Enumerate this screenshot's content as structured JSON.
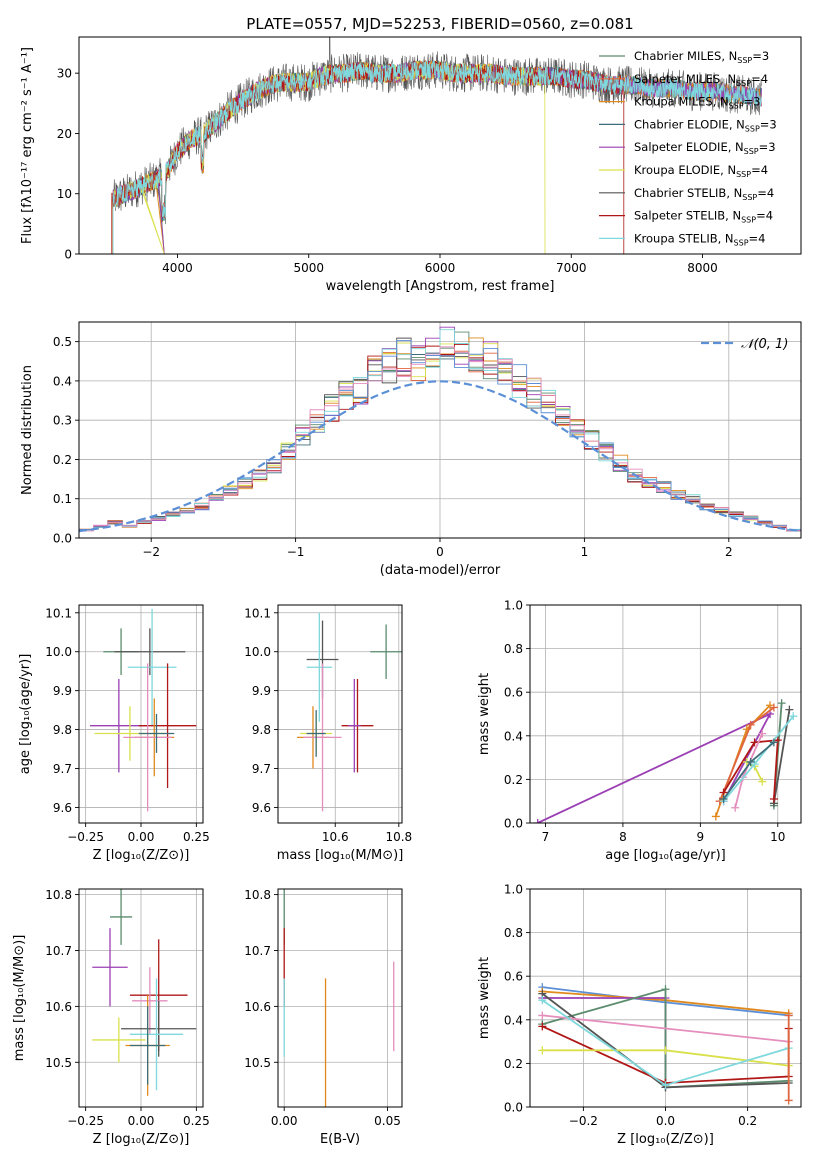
{
  "chart_data": [
    {
      "id": "spectrum",
      "type": "line",
      "title": "PLATE=0557, MJD=52253, FIBERID=0560, z=0.081",
      "xlabel": "wavelength [Angstrom, rest frame]",
      "ylabel": "Flux [fλ10⁻¹⁷ erg cm⁻² s⁻¹ A⁻¹]",
      "xlim": [
        3250,
        8750
      ],
      "ylim": [
        0,
        36
      ],
      "xticks": [
        4000,
        5000,
        6000,
        7000,
        8000
      ],
      "yticks": [
        0,
        10,
        20,
        30
      ],
      "grid": false,
      "legend_position": "upper-right",
      "series": [
        {
          "name": "Chabrier MILES, N_SSP=3",
          "color": "#5b8c6e"
        },
        {
          "name": "Salpeter MILES, N_SSP=4",
          "color": "#e0663f"
        },
        {
          "name": "Kroupa MILES, N_SSP=3",
          "color": "#e08a1e"
        },
        {
          "name": "Chabrier ELODIE, N_SSP=3",
          "color": "#3c6e7a"
        },
        {
          "name": "Salpeter ELODIE, N_SSP=3",
          "color": "#9b3fb5"
        },
        {
          "name": "Kroupa ELODIE, N_SSP=4",
          "color": "#d9e04a"
        },
        {
          "name": "Chabrier STELIB, N_SSP=4",
          "color": "#555555"
        },
        {
          "name": "Salpeter STELIB, N_SSP=4",
          "color": "#b01818"
        },
        {
          "name": "Kroupa STELIB, N_SSP=4",
          "color": "#7fd8dc"
        }
      ],
      "continuum": {
        "x": [
          3500,
          3650,
          3800,
          3900,
          4000,
          4100,
          4200,
          4300,
          4400,
          4500,
          4600,
          4700,
          4800,
          4900,
          5000,
          5100,
          5200,
          5300,
          5400,
          5500,
          5600,
          5700,
          5800,
          5900,
          6000,
          6100,
          6200,
          6300,
          6400,
          6500,
          6600,
          6700,
          6800,
          6900,
          7000,
          7100,
          7200,
          7300,
          7400,
          7500,
          7600,
          7700,
          7800,
          7900,
          8000,
          8100,
          8200,
          8300,
          8400
        ],
        "y": [
          9,
          10.5,
          12,
          13,
          17,
          19,
          20,
          22,
          24,
          25.5,
          27,
          28,
          28.5,
          28.5,
          28.5,
          29.5,
          30,
          30,
          30.5,
          30,
          30,
          30,
          30.5,
          30.5,
          30.5,
          30,
          30,
          30,
          30,
          29.5,
          29.5,
          29.5,
          29.5,
          29.5,
          29,
          29,
          28.5,
          28,
          28,
          28,
          27.5,
          27.5,
          27.5,
          27,
          27,
          27,
          26.5,
          26.5,
          26
        ]
      }
    },
    {
      "id": "residuals",
      "type": "line",
      "xlabel": "(data-model)/error",
      "ylabel": "Normed distribution",
      "xlim": [
        -2.5,
        2.5
      ],
      "ylim": [
        0,
        0.55
      ],
      "xticks": [
        -2,
        -1,
        0,
        1,
        2
      ],
      "yticks": [
        0.0,
        0.1,
        0.2,
        0.3,
        0.4,
        0.5
      ],
      "grid": true,
      "legend": "𝒩(0, 1)",
      "legend_position": "upper-right",
      "reference_curve": {
        "type": "normal",
        "mean": 0,
        "sigma": 1,
        "color": "#5b8fd6"
      },
      "hist_x": [
        -2.5,
        -2.4,
        -2.3,
        -2.2,
        -2.1,
        -2.0,
        -1.9,
        -1.8,
        -1.7,
        -1.6,
        -1.5,
        -1.4,
        -1.3,
        -1.2,
        -1.1,
        -1.0,
        -0.9,
        -0.8,
        -0.7,
        -0.6,
        -0.5,
        -0.4,
        -0.3,
        -0.2,
        -0.1,
        0.0,
        0.1,
        0.2,
        0.3,
        0.4,
        0.5,
        0.6,
        0.7,
        0.8,
        0.9,
        1.0,
        1.1,
        1.2,
        1.3,
        1.4,
        1.5,
        1.6,
        1.7,
        1.8,
        1.9,
        2.0,
        2.1,
        2.2,
        2.3,
        2.4
      ],
      "hist_y": [
        0.02,
        0.03,
        0.04,
        0.03,
        0.04,
        0.05,
        0.06,
        0.07,
        0.08,
        0.1,
        0.12,
        0.14,
        0.16,
        0.18,
        0.22,
        0.26,
        0.3,
        0.33,
        0.36,
        0.38,
        0.42,
        0.44,
        0.46,
        0.45,
        0.47,
        0.5,
        0.48,
        0.47,
        0.45,
        0.43,
        0.4,
        0.37,
        0.34,
        0.31,
        0.28,
        0.25,
        0.22,
        0.19,
        0.16,
        0.14,
        0.13,
        0.11,
        0.1,
        0.08,
        0.07,
        0.06,
        0.05,
        0.04,
        0.03,
        0.02
      ]
    },
    {
      "id": "z-age",
      "type": "scatter",
      "xlabel": "Z [log₁₀(Z/Z⊙)]",
      "ylabel": "age  [log₁₀(age/yr)]",
      "xlim": [
        -0.28,
        0.28
      ],
      "ylim": [
        9.56,
        10.12
      ],
      "xticks": [
        -0.25,
        0.0,
        0.25
      ],
      "xticklabels": [
        "−0.25",
        "0.00",
        "0.25"
      ],
      "yticks": [
        9.6,
        9.7,
        9.8,
        9.9,
        10.0,
        10.1
      ],
      "grid": true,
      "points": [
        {
          "x": -0.09,
          "y": 10.0,
          "xerr": 0.08,
          "yerr": 0.06,
          "color": "#5b8c6e"
        },
        {
          "x": 0.04,
          "y": 10.0,
          "xerr": 0.16,
          "yerr": 0.06,
          "color": "#555555"
        },
        {
          "x": 0.05,
          "y": 9.96,
          "xerr": 0.11,
          "yerr": 0.15,
          "color": "#7fd8dc"
        },
        {
          "x": -0.1,
          "y": 9.81,
          "xerr": 0.13,
          "yerr": 0.12,
          "color": "#9b3fb5"
        },
        {
          "x": 0.12,
          "y": 9.81,
          "xerr": 0.13,
          "yerr": 0.16,
          "color": "#b01818"
        },
        {
          "x": -0.05,
          "y": 9.79,
          "xerr": 0.16,
          "yerr": 0.07,
          "color": "#d9e04a"
        },
        {
          "x": 0.06,
          "y": 9.78,
          "xerr": 0.09,
          "yerr": 0.1,
          "color": "#e08a1e"
        },
        {
          "x": 0.03,
          "y": 9.78,
          "xerr": 0.11,
          "yerr": 0.19,
          "color": "#e58dbd"
        },
        {
          "x": 0.07,
          "y": 9.79,
          "xerr": 0.08,
          "yerr": 0.05,
          "color": "#3c6e7a"
        }
      ]
    },
    {
      "id": "mass-age",
      "type": "scatter",
      "xlabel": "mass [log₁₀(M/M⊙)]",
      "ylabel": "",
      "xlim": [
        10.42,
        10.81
      ],
      "ylim": [
        9.56,
        10.12
      ],
      "xticks": [
        10.6,
        10.8
      ],
      "yticks": [
        9.6,
        9.7,
        9.8,
        9.9,
        10.0,
        10.1
      ],
      "grid": true,
      "points": [
        {
          "x": 10.76,
          "y": 10.0,
          "xerr": 0.05,
          "yerr": 0.07,
          "color": "#5b8c6e"
        },
        {
          "x": 10.56,
          "y": 9.98,
          "xerr": 0.05,
          "yerr": 0.1,
          "color": "#555555"
        },
        {
          "x": 10.55,
          "y": 9.96,
          "xerr": 0.04,
          "yerr": 0.14,
          "color": "#7fd8dc"
        },
        {
          "x": 10.67,
          "y": 9.81,
          "xerr": 0.05,
          "yerr": 0.12,
          "color": "#b01818"
        },
        {
          "x": 10.54,
          "y": 9.79,
          "xerr": 0.05,
          "yerr": 0.05,
          "color": "#d9e04a"
        },
        {
          "x": 10.53,
          "y": 9.78,
          "xerr": 0.05,
          "yerr": 0.08,
          "color": "#e08a1e"
        },
        {
          "x": 10.56,
          "y": 9.78,
          "xerr": 0.06,
          "yerr": 0.19,
          "color": "#e58dbd"
        },
        {
          "x": 10.66,
          "y": 9.81,
          "xerr": 0.02,
          "yerr": 0.12,
          "color": "#9b3fb5"
        },
        {
          "x": 10.54,
          "y": 9.79,
          "xerr": 0.03,
          "yerr": 0.06,
          "color": "#3c6e7a"
        }
      ]
    },
    {
      "id": "age-massweight",
      "type": "line",
      "xlabel": "age  [log₁₀(age/yr)]",
      "ylabel": "mass weight",
      "xlim": [
        6.8,
        10.3
      ],
      "ylim": [
        0,
        1.0
      ],
      "xticks": [
        7,
        8,
        9,
        10
      ],
      "yticks": [
        0.0,
        0.2,
        0.4,
        0.6,
        0.8,
        1.0
      ],
      "grid": true,
      "series": [
        {
          "color": "#9b3fb5",
          "x": [
            6.9,
            9.9,
            9.3
          ],
          "y": [
            0.0,
            0.5,
            0.1
          ]
        },
        {
          "color": "#e08a1e",
          "x": [
            9.2,
            9.6,
            9.9
          ],
          "y": [
            0.03,
            0.43,
            0.54
          ]
        },
        {
          "color": "#e0663f",
          "x": [
            9.25,
            9.65,
            9.95
          ],
          "y": [
            0.1,
            0.45,
            0.53
          ]
        },
        {
          "color": "#5b8c6e",
          "x": [
            9.95,
            10.05,
            9.95
          ],
          "y": [
            0.09,
            0.55,
            0.08
          ]
        },
        {
          "color": "#555555",
          "x": [
            9.95,
            10.15
          ],
          "y": [
            0.09,
            0.52
          ]
        },
        {
          "color": "#b01818",
          "x": [
            9.3,
            9.7,
            10.0,
            9.95
          ],
          "y": [
            0.14,
            0.37,
            0.38,
            0.11
          ]
        },
        {
          "color": "#d9e04a",
          "x": [
            9.6,
            9.7,
            9.8
          ],
          "y": [
            0.28,
            0.26,
            0.19
          ]
        },
        {
          "color": "#e58dbd",
          "x": [
            9.45,
            9.55,
            9.8
          ],
          "y": [
            0.07,
            0.21,
            0.41
          ]
        },
        {
          "color": "#7fd8dc",
          "x": [
            9.3,
            9.7,
            10.2
          ],
          "y": [
            0.1,
            0.27,
            0.49
          ]
        },
        {
          "color": "#3c6e7a",
          "x": [
            9.3,
            9.65,
            9.95
          ],
          "y": [
            0.11,
            0.28,
            0.37
          ]
        }
      ]
    },
    {
      "id": "z-mass",
      "type": "scatter",
      "xlabel": "Z [log₁₀(Z/Z⊙)]",
      "ylabel": "mass [log₁₀(M/M⊙)]",
      "xlim": [
        -0.28,
        0.28
      ],
      "ylim": [
        10.42,
        10.81
      ],
      "xticks": [
        -0.25,
        0.0,
        0.25
      ],
      "xticklabels": [
        "−0.25",
        "0.00",
        "0.25"
      ],
      "yticks": [
        10.5,
        10.6,
        10.7,
        10.8
      ],
      "grid": true,
      "points": [
        {
          "x": -0.09,
          "y": 10.76,
          "xerr": 0.05,
          "yerr": 0.05,
          "color": "#5b8c6e"
        },
        {
          "x": -0.14,
          "y": 10.67,
          "xerr": 0.08,
          "yerr": 0.07,
          "color": "#9b3fb5"
        },
        {
          "x": 0.08,
          "y": 10.62,
          "xerr": 0.13,
          "yerr": 0.1,
          "color": "#b01818"
        },
        {
          "x": 0.04,
          "y": 10.61,
          "xerr": 0.08,
          "yerr": 0.06,
          "color": "#e58dbd"
        },
        {
          "x": 0.08,
          "y": 10.56,
          "xerr": 0.17,
          "yerr": 0.05,
          "color": "#555555"
        },
        {
          "x": 0.07,
          "y": 10.55,
          "xerr": 0.12,
          "yerr": 0.1,
          "color": "#7fd8dc"
        },
        {
          "x": -0.1,
          "y": 10.54,
          "xerr": 0.12,
          "yerr": 0.04,
          "color": "#d9e04a"
        },
        {
          "x": 0.03,
          "y": 10.53,
          "xerr": 0.1,
          "yerr": 0.09,
          "color": "#e08a1e"
        },
        {
          "x": 0.03,
          "y": 10.53,
          "xerr": 0.08,
          "yerr": 0.07,
          "color": "#3c6e7a"
        }
      ]
    },
    {
      "id": "ebv-mass",
      "type": "scatter",
      "xlabel": "E(B-V)",
      "ylabel": "",
      "xlim": [
        -0.003,
        0.057
      ],
      "ylim": [
        10.42,
        10.81
      ],
      "xticks": [
        0.0,
        0.05
      ],
      "xticklabels": [
        "0.00",
        "0.05"
      ],
      "yticks": [
        10.5,
        10.6,
        10.7,
        10.8
      ],
      "grid": true,
      "points": [
        {
          "x": 0.0,
          "y": 10.76,
          "xerr": 0,
          "yerr": 0.05,
          "color": "#5b8c6e"
        },
        {
          "x": 0.0,
          "y": 10.67,
          "xerr": 0,
          "yerr": 0.07,
          "color": "#b01818"
        },
        {
          "x": 0.0,
          "y": 10.58,
          "xerr": 0,
          "yerr": 0.07,
          "color": "#7fd8dc"
        },
        {
          "x": 0.02,
          "y": 10.53,
          "xerr": 0,
          "yerr": 0.12,
          "color": "#e08a1e"
        },
        {
          "x": 0.053,
          "y": 10.6,
          "xerr": 0,
          "yerr": 0.08,
          "color": "#e58dbd"
        }
      ]
    },
    {
      "id": "z-massweight",
      "type": "line",
      "xlabel": "Z [log₁₀(Z/Z⊙)]",
      "ylabel": "mass weight",
      "xlim": [
        -0.33,
        0.33
      ],
      "ylim": [
        0,
        1.0
      ],
      "xticks": [
        -0.2,
        0.0,
        0.2
      ],
      "xticklabels": [
        "−0.2",
        "0.0",
        "0.2"
      ],
      "yticks": [
        0.0,
        0.2,
        0.4,
        0.6,
        0.8,
        1.0
      ],
      "grid": true,
      "series": [
        {
          "color": "#5b8fd6",
          "x": [
            -0.3,
            0.0,
            0.3
          ],
          "y": [
            0.55,
            0.48,
            0.42
          ]
        },
        {
          "color": "#e08a1e",
          "x": [
            -0.3,
            0.0,
            0.3
          ],
          "y": [
            0.53,
            0.49,
            0.43
          ]
        },
        {
          "color": "#9b3fb5",
          "x": [
            -0.3,
            0.0,
            0.0
          ],
          "y": [
            0.5,
            0.5,
            0.1
          ]
        },
        {
          "color": "#5b8c6e",
          "x": [
            -0.3,
            0.0,
            0.0,
            0.3
          ],
          "y": [
            0.38,
            0.54,
            0.09,
            0.12
          ]
        },
        {
          "color": "#555555",
          "x": [
            -0.3,
            0.0,
            0.3
          ],
          "y": [
            0.52,
            0.09,
            0.11
          ]
        },
        {
          "color": "#b01818",
          "x": [
            -0.3,
            0.0,
            0.3,
            0.3
          ],
          "y": [
            0.37,
            0.11,
            0.14,
            0.36
          ]
        },
        {
          "color": "#e58dbd",
          "x": [
            -0.3,
            0.3
          ],
          "y": [
            0.42,
            0.3
          ]
        },
        {
          "color": "#d9e04a",
          "x": [
            -0.3,
            0.0,
            0.3
          ],
          "y": [
            0.26,
            0.26,
            0.19
          ]
        },
        {
          "color": "#7fd8dc",
          "x": [
            -0.3,
            0.0,
            0.3
          ],
          "y": [
            0.49,
            0.1,
            0.27
          ]
        },
        {
          "color": "#e0663f",
          "x": [
            0.3,
            0.3
          ],
          "y": [
            0.03,
            0.42
          ]
        }
      ]
    }
  ]
}
